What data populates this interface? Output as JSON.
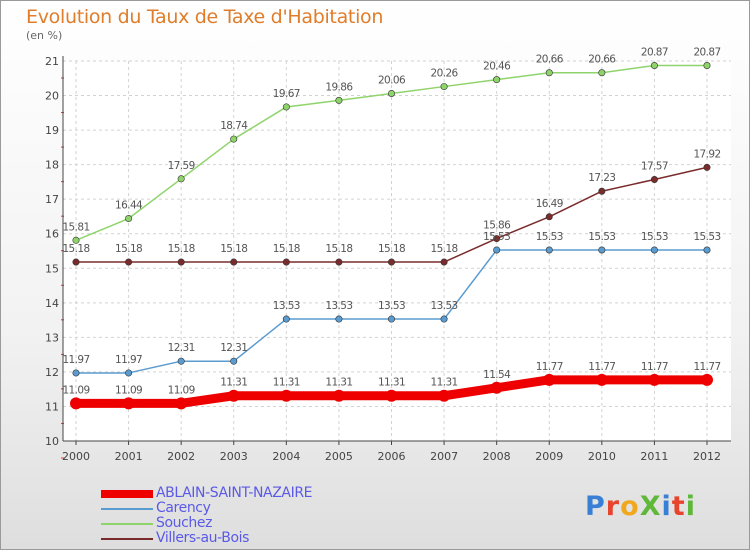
{
  "title": "Evolution du Taux de Taxe d'Habitation",
  "unit_label": "(en %)",
  "logo_text": "ProXiti",
  "logo_colors": [
    "#3a7fd6",
    "#e8432d",
    "#f0a91e",
    "#5fb83a",
    "#3a7fd6",
    "#e8432d",
    "#5fb83a"
  ],
  "chart_data": {
    "type": "line",
    "x": [
      "2000",
      "2001",
      "2002",
      "2003",
      "2004",
      "2005",
      "2006",
      "2007",
      "2008",
      "2009",
      "2010",
      "2011",
      "2012"
    ],
    "ylim": [
      10,
      21
    ],
    "yticks": [
      "10",
      "11",
      "12",
      "13",
      "14",
      "15",
      "16",
      "17",
      "18",
      "19",
      "20",
      "21"
    ],
    "grid": true,
    "legend_position": "bottom-left",
    "series": [
      {
        "name": "ABLAIN-SAINT-NAZAIRE",
        "color": "#ee0000",
        "bold": true,
        "values": [
          11.09,
          11.09,
          11.09,
          11.31,
          11.31,
          11.31,
          11.31,
          11.31,
          11.54,
          11.77,
          11.77,
          11.77,
          11.77
        ],
        "labels": [
          "11.09",
          "11.09",
          "11.09",
          "11.31",
          "11.31",
          "11.31",
          "11.31",
          "11.31",
          "11.54",
          "11.77",
          "11.77",
          "11.77",
          "11.77"
        ]
      },
      {
        "name": "Carency",
        "color": "#5a9bd0",
        "bold": false,
        "values": [
          11.97,
          11.97,
          12.31,
          12.31,
          13.53,
          13.53,
          13.53,
          13.53,
          15.53,
          15.53,
          15.53,
          15.53,
          15.53
        ],
        "labels": [
          "11.97",
          "11.97",
          "12.31",
          "12.31",
          "13.53",
          "13.53",
          "13.53",
          "13.53",
          "15.53",
          "15.53",
          "15.53",
          "15.53",
          "15.53"
        ]
      },
      {
        "name": "Souchez",
        "color": "#8fd46a",
        "bold": false,
        "values": [
          15.81,
          16.44,
          17.59,
          18.74,
          19.67,
          19.86,
          20.06,
          20.26,
          20.46,
          20.66,
          20.66,
          20.87,
          20.87
        ],
        "labels": [
          "15.81",
          "16.44",
          "17.59",
          "18.74",
          "19.67",
          "19.86",
          "20.06",
          "20.26",
          "20.46",
          "20.66",
          "20.66",
          "20.87",
          "20.87"
        ]
      },
      {
        "name": "Villers-au-Bois",
        "color": "#7a2c2c",
        "bold": false,
        "values": [
          15.18,
          15.18,
          15.18,
          15.18,
          15.18,
          15.18,
          15.18,
          15.18,
          15.86,
          16.49,
          17.23,
          17.57,
          17.92
        ],
        "labels": [
          "15.18",
          "15.18",
          "15.18",
          "15.18",
          "15.18",
          "15.18",
          "15.18",
          "15.18",
          "15.86",
          "16.49",
          "17.23",
          "17.57",
          "17.92"
        ]
      }
    ]
  }
}
